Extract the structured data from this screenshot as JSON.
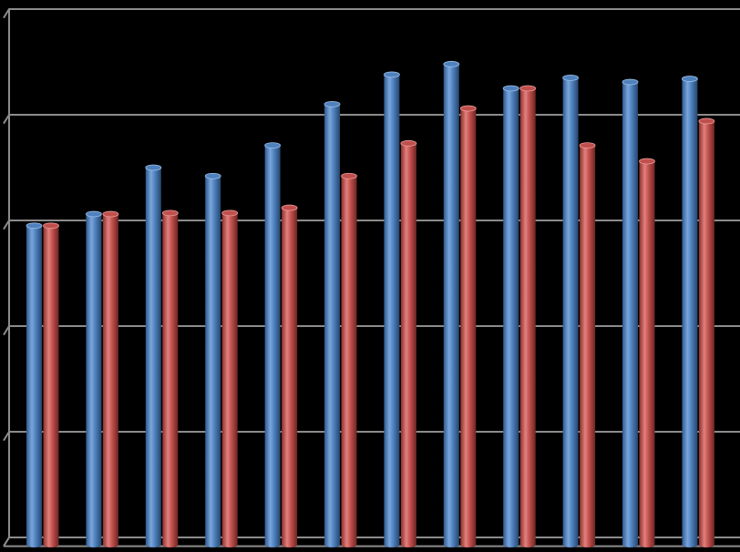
{
  "chart_data": {
    "type": "bar",
    "style": "3d-cylinder",
    "categories": [
      "",
      "",
      "",
      "",
      "",
      "",
      "",
      "",
      "",
      "",
      "",
      ""
    ],
    "series": [
      {
        "color": "#4f81bd",
        "values": [
          295,
          306,
          350,
          342,
          371,
          410,
          438,
          448,
          425,
          435,
          431,
          434
        ]
      },
      {
        "color": "#c0504d",
        "values": [
          295,
          306,
          307,
          307,
          312,
          342,
          373,
          406,
          425,
          371,
          356,
          394
        ]
      }
    ],
    "ylim": [
      0,
      500
    ],
    "gridlines": 5,
    "grid": true,
    "background": "#000000",
    "gridline_color": "#8c8c8c"
  }
}
